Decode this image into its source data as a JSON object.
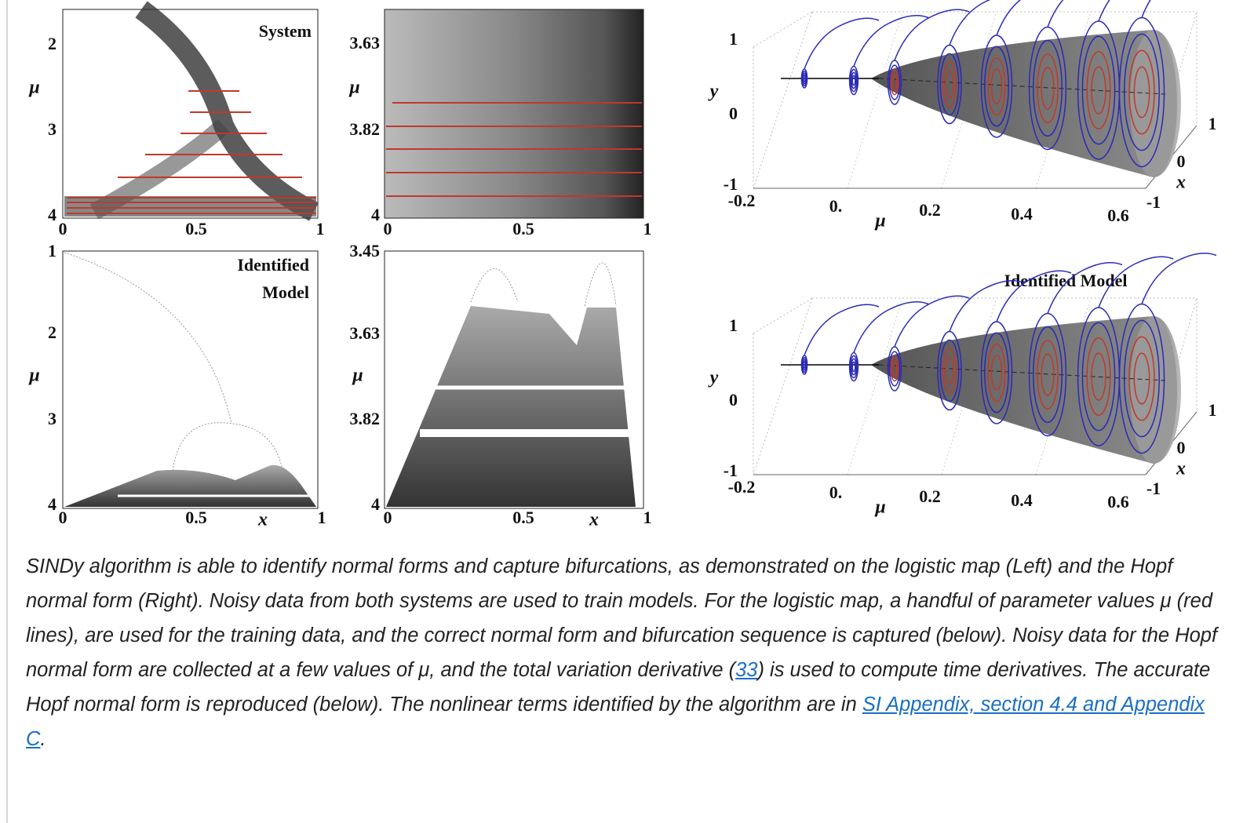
{
  "panels": {
    "top_left": {
      "title": "System",
      "y_label": "μ",
      "y_ticks": [
        "2",
        "3",
        "4"
      ],
      "x_ticks": [
        "0",
        "0.5",
        "1"
      ]
    },
    "top_middle": {
      "y_label": "μ",
      "y_ticks": [
        "3.63",
        "3.82",
        "4"
      ],
      "x_ticks": [
        "0",
        "0.5",
        "1"
      ]
    },
    "bottom_left": {
      "title_lines": [
        "Identified",
        "Model"
      ],
      "y_label": "μ",
      "x_label": "x",
      "y_ticks": [
        "1",
        "2",
        "3",
        "4"
      ],
      "x_ticks": [
        "0",
        "0.5",
        "1"
      ]
    },
    "bottom_middle": {
      "y_label": "μ",
      "x_label": "x",
      "y_ticks": [
        "3.45",
        "3.63",
        "3.82",
        "4"
      ],
      "x_ticks": [
        "0",
        "0.5",
        "1"
      ]
    },
    "top_right": {
      "y_label": "y",
      "y_ticks": [
        "1",
        "0",
        "-1"
      ],
      "mu_label": "μ",
      "mu_ticks": [
        "-0.2",
        "0.",
        "0.2",
        "0.4",
        "0.6"
      ],
      "x_label": "x",
      "x_ticks": [
        "1",
        "0",
        "-1"
      ]
    },
    "bottom_right": {
      "title": "Identified Model",
      "y_label": "y",
      "y_ticks": [
        "1",
        "0",
        "-1"
      ],
      "mu_label": "μ",
      "mu_ticks": [
        "-0.2",
        "0.",
        "0.2",
        "0.4",
        "0.6"
      ],
      "x_label": "x",
      "x_ticks": [
        "1",
        "0",
        "-1"
      ]
    }
  },
  "caption": {
    "text_1": "SINDy algorithm is able to identify normal forms and capture bifurcations, as demonstrated on the logistic map (Left) and the Hopf normal form (Right). Noisy data from both systems are used to train models. For the logistic map, a handful of parameter values μ (red lines), are used for the training data, and the correct normal form and bifurcation sequence is captured (below). Noisy data for the Hopf normal form are collected at a few values of μ, and the total variation derivative (",
    "ref_link": "33",
    "text_2": ") is used to compute time derivatives. The accurate Hopf normal form is reproduced (below). The nonlinear terms identified by the algorithm are in ",
    "appendix_link": "SI Appendix, section 4.4 and Appendix C",
    "text_3": "."
  }
}
